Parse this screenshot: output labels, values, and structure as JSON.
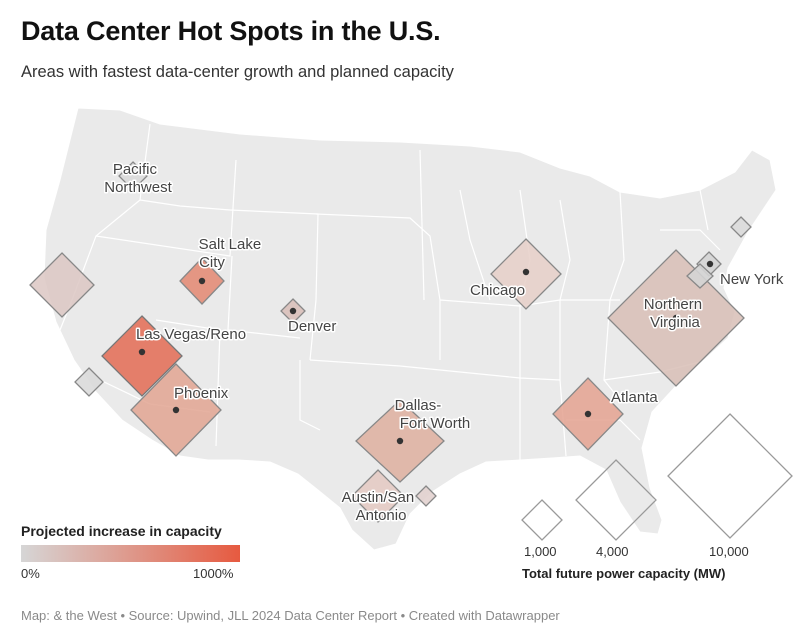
{
  "title": "Data Center Hot Spots in the U.S.",
  "subtitle": "Areas with fastest data-center growth and planned capacity",
  "footer": "Map: & the West • Source: Upwind, JLL 2024 Data Center Report • Created with Datawrapper",
  "legend": {
    "color_title": "Projected increase in capacity",
    "color_min": "0%",
    "color_max": "1000%",
    "color_range": [
      "#d6d6d6",
      "#e65a40"
    ],
    "size_title": "Total future power capacity (MW)",
    "sizes": [
      {
        "label": "1,000",
        "value": 1000
      },
      {
        "label": "4,000",
        "value": 4000
      },
      {
        "label": "10,000",
        "value": 10000
      }
    ]
  },
  "markets": [
    {
      "id": "pacific-northwest",
      "label_lines": [
        "Pacific",
        "Northwest"
      ]
    },
    {
      "id": "salt-lake-city",
      "label_lines": [
        "Salt Lake",
        "City"
      ]
    },
    {
      "id": "denver",
      "label_lines": [
        "Denver"
      ]
    },
    {
      "id": "las-vegas-reno",
      "label_lines": [
        "Las Vegas/Reno"
      ]
    },
    {
      "id": "phoenix",
      "label_lines": [
        "Phoenix"
      ]
    },
    {
      "id": "dallas-fort-worth",
      "label_lines": [
        "Dallas-",
        "Fort Worth"
      ]
    },
    {
      "id": "austin-san-antonio",
      "label_lines": [
        "Austin/San",
        "Antonio"
      ]
    },
    {
      "id": "chicago",
      "label_lines": [
        "Chicago"
      ]
    },
    {
      "id": "atlanta",
      "label_lines": [
        "Atlanta"
      ]
    },
    {
      "id": "northern-virginia",
      "label_lines": [
        "Northern",
        "Virginia"
      ]
    },
    {
      "id": "new-york",
      "label_lines": [
        "New York"
      ]
    },
    {
      "id": "northern-california",
      "label_lines": []
    },
    {
      "id": "southern-california",
      "label_lines": []
    },
    {
      "id": "houston",
      "label_lines": []
    },
    {
      "id": "boston",
      "label_lines": []
    }
  ]
}
